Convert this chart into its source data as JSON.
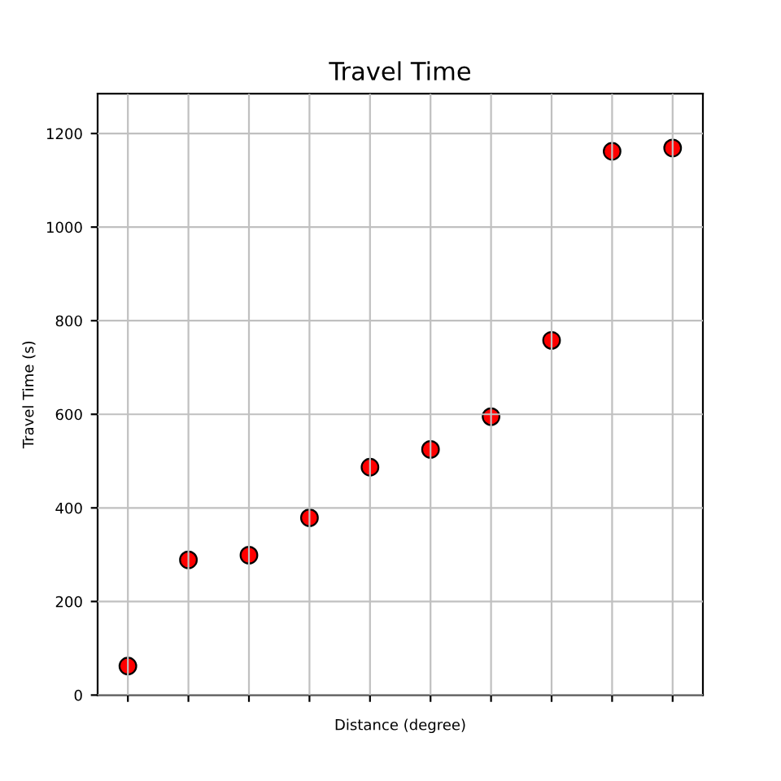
{
  "chart_data": {
    "type": "scatter",
    "title": "Travel Time",
    "xlabel": "Distance (degree)",
    "ylabel": "Travel Time (s)",
    "categories": [
      null,
      null,
      null,
      null,
      null,
      null,
      null,
      null,
      null,
      null
    ],
    "series": [
      {
        "color": "#ff0000",
        "values": [
          62,
          289,
          299,
          379,
          487,
          525,
          595,
          758,
          1162,
          1169
        ]
      }
    ],
    "ylim": [
      0,
      1285
    ],
    "yticks": [
      0,
      200,
      400,
      600,
      800,
      1000,
      1200
    ],
    "grid": true,
    "marker": "circle"
  }
}
